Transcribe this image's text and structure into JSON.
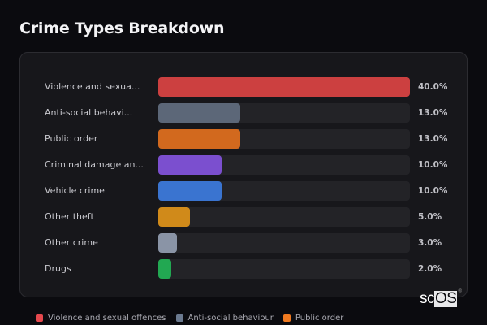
{
  "title": "Crime Types Breakdown",
  "chart_data": {
    "type": "bar",
    "orientation": "horizontal",
    "title": "Crime Types Breakdown",
    "xlabel": "",
    "ylabel": "",
    "value_format": "percent",
    "scale_max": 40.0,
    "grid": false,
    "legend_position": "bottom",
    "categories": [
      "Violence and sexual offences",
      "Anti-social behaviour",
      "Public order",
      "Criminal damage and arson",
      "Vehicle crime",
      "Other theft",
      "Other crime",
      "Drugs"
    ],
    "display_labels": [
      "Violence and sexua...",
      "Anti-social behavi...",
      "Public order",
      "Criminal damage an...",
      "Vehicle crime",
      "Other theft",
      "Other crime",
      "Drugs"
    ],
    "values": [
      40.0,
      13.0,
      13.0,
      10.0,
      10.0,
      5.0,
      3.0,
      2.0
    ],
    "value_labels": [
      "40.0%",
      "13.0%",
      "13.0%",
      "10.0%",
      "10.0%",
      "5.0%",
      "3.0%",
      "2.0%"
    ],
    "colors": [
      "#cc4040",
      "#5c6778",
      "#d2691e",
      "#7b4fcf",
      "#3a74d0",
      "#d08a1a",
      "#8a94a6",
      "#22a852"
    ]
  },
  "legend": [
    {
      "label": "Violence and sexual offences",
      "color": "#e5484d"
    },
    {
      "label": "Anti-social behaviour",
      "color": "#6b7a90"
    },
    {
      "label": "Public order",
      "color": "#f07a20"
    }
  ],
  "logo": {
    "left": "sc",
    "right": "OS",
    "mark": "®"
  }
}
